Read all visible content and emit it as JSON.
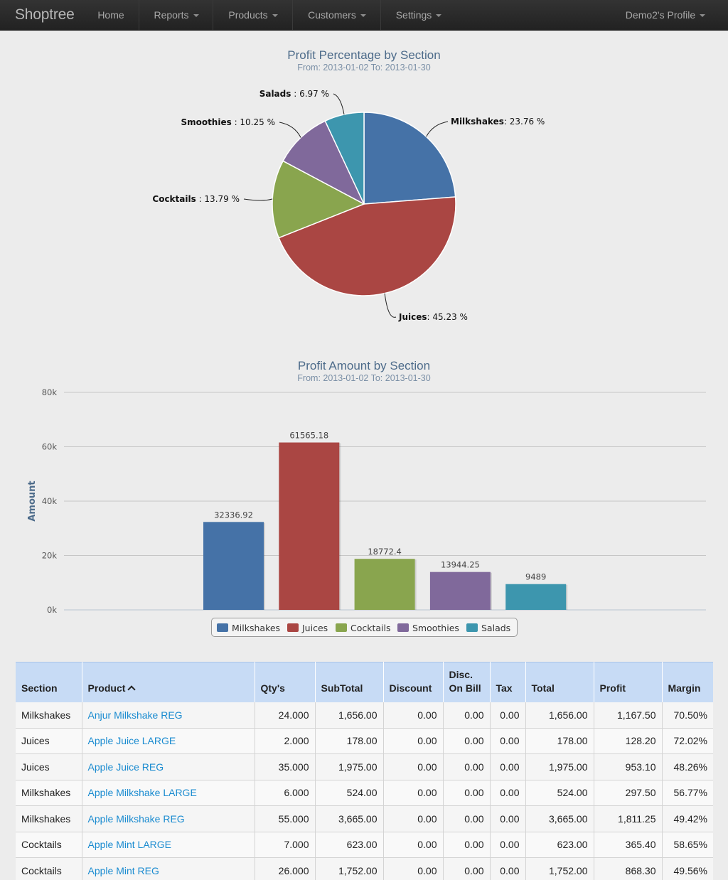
{
  "navbar": {
    "brand": "Shoptree",
    "items": [
      {
        "label": "Home"
      },
      {
        "label": "Reports"
      },
      {
        "label": "Products"
      },
      {
        "label": "Customers"
      },
      {
        "label": "Settings"
      }
    ],
    "profile": "Demo2's Profile"
  },
  "pie_chart": {
    "title": "Profit Percentage by Section",
    "subtitle": "From: 2013-01-02 To: 2013-01-30"
  },
  "bar_chart": {
    "title": "Profit Amount by Section",
    "subtitle": "From: 2013-01-02 To: 2013-01-30"
  },
  "chart_data": [
    {
      "type": "pie",
      "title": "Profit Percentage by Section",
      "subtitle": "From: 2013-01-02 To: 2013-01-30",
      "slices": [
        {
          "name": "Milkshakes",
          "value": 23.76,
          "label_value": ": 23.76 %",
          "color": "#4572a7"
        },
        {
          "name": "Juices",
          "value": 45.23,
          "label_value": ": 45.23 %",
          "color": "#aa4643"
        },
        {
          "name": "Cocktails",
          "value": 13.79,
          "label_value": " : 13.79 %",
          "color": "#89a54e"
        },
        {
          "name": "Smoothies",
          "value": 10.25,
          "label_value": " : 10.25 %",
          "color": "#80699b"
        },
        {
          "name": "Salads",
          "value": 6.97,
          "label_value": " : 6.97 %",
          "color": "#3d96ae"
        }
      ]
    },
    {
      "type": "bar",
      "title": "Profit Amount by Section",
      "subtitle": "From: 2013-01-02 To: 2013-01-30",
      "ylabel": "Amount",
      "ylim": [
        0,
        80000
      ],
      "yticks": [
        "0k",
        "20k",
        "40k",
        "60k",
        "80k"
      ],
      "series": [
        {
          "name": "Milkshakes",
          "value": 32336.92,
          "label": "32336.92",
          "color": "#4572a7"
        },
        {
          "name": "Juices",
          "value": 61565.18,
          "label": "61565.18",
          "color": "#aa4643"
        },
        {
          "name": "Cocktails",
          "value": 18772.4,
          "label": "18772.4",
          "color": "#89a54e"
        },
        {
          "name": "Smoothies",
          "value": 13944.25,
          "label": "13944.25",
          "color": "#80699b"
        },
        {
          "name": "Salads",
          "value": 9489,
          "label": "9489",
          "color": "#3d96ae"
        }
      ],
      "legend": "bottom-center"
    }
  ],
  "table": {
    "headers": {
      "section": "Section",
      "product": "Product",
      "qty": "Qty's",
      "subtotal": "SubTotal",
      "discount": "Discount",
      "disc_on_bill_1": "Disc.",
      "disc_on_bill_2": "On Bill",
      "tax": "Tax",
      "total": "Total",
      "profit": "Profit",
      "margin": "Margin"
    },
    "rows": [
      {
        "section": "Milkshakes",
        "product": "Anjur Milkshake REG",
        "qty": "24.000",
        "subtotal": "1,656.00",
        "discount": "0.00",
        "disc_on_bill": "0.00",
        "tax": "0.00",
        "total": "1,656.00",
        "profit": "1,167.50",
        "margin": "70.50%"
      },
      {
        "section": "Juices",
        "product": "Apple Juice LARGE",
        "qty": "2.000",
        "subtotal": "178.00",
        "discount": "0.00",
        "disc_on_bill": "0.00",
        "tax": "0.00",
        "total": "178.00",
        "profit": "128.20",
        "margin": "72.02%"
      },
      {
        "section": "Juices",
        "product": "Apple Juice REG",
        "qty": "35.000",
        "subtotal": "1,975.00",
        "discount": "0.00",
        "disc_on_bill": "0.00",
        "tax": "0.00",
        "total": "1,975.00",
        "profit": "953.10",
        "margin": "48.26%"
      },
      {
        "section": "Milkshakes",
        "product": "Apple Milkshake LARGE",
        "qty": "6.000",
        "subtotal": "524.00",
        "discount": "0.00",
        "disc_on_bill": "0.00",
        "tax": "0.00",
        "total": "524.00",
        "profit": "297.50",
        "margin": "56.77%"
      },
      {
        "section": "Milkshakes",
        "product": "Apple Milkshake REG",
        "qty": "55.000",
        "subtotal": "3,665.00",
        "discount": "0.00",
        "disc_on_bill": "0.00",
        "tax": "0.00",
        "total": "3,665.00",
        "profit": "1,811.25",
        "margin": "49.42%"
      },
      {
        "section": "Cocktails",
        "product": "Apple Mint LARGE",
        "qty": "7.000",
        "subtotal": "623.00",
        "discount": "0.00",
        "disc_on_bill": "0.00",
        "tax": "0.00",
        "total": "623.00",
        "profit": "365.40",
        "margin": "58.65%"
      },
      {
        "section": "Cocktails",
        "product": "Apple Mint REG",
        "qty": "26.000",
        "subtotal": "1,752.00",
        "discount": "0.00",
        "disc_on_bill": "0.00",
        "tax": "0.00",
        "total": "1,752.00",
        "profit": "868.30",
        "margin": "49.56%"
      }
    ]
  }
}
